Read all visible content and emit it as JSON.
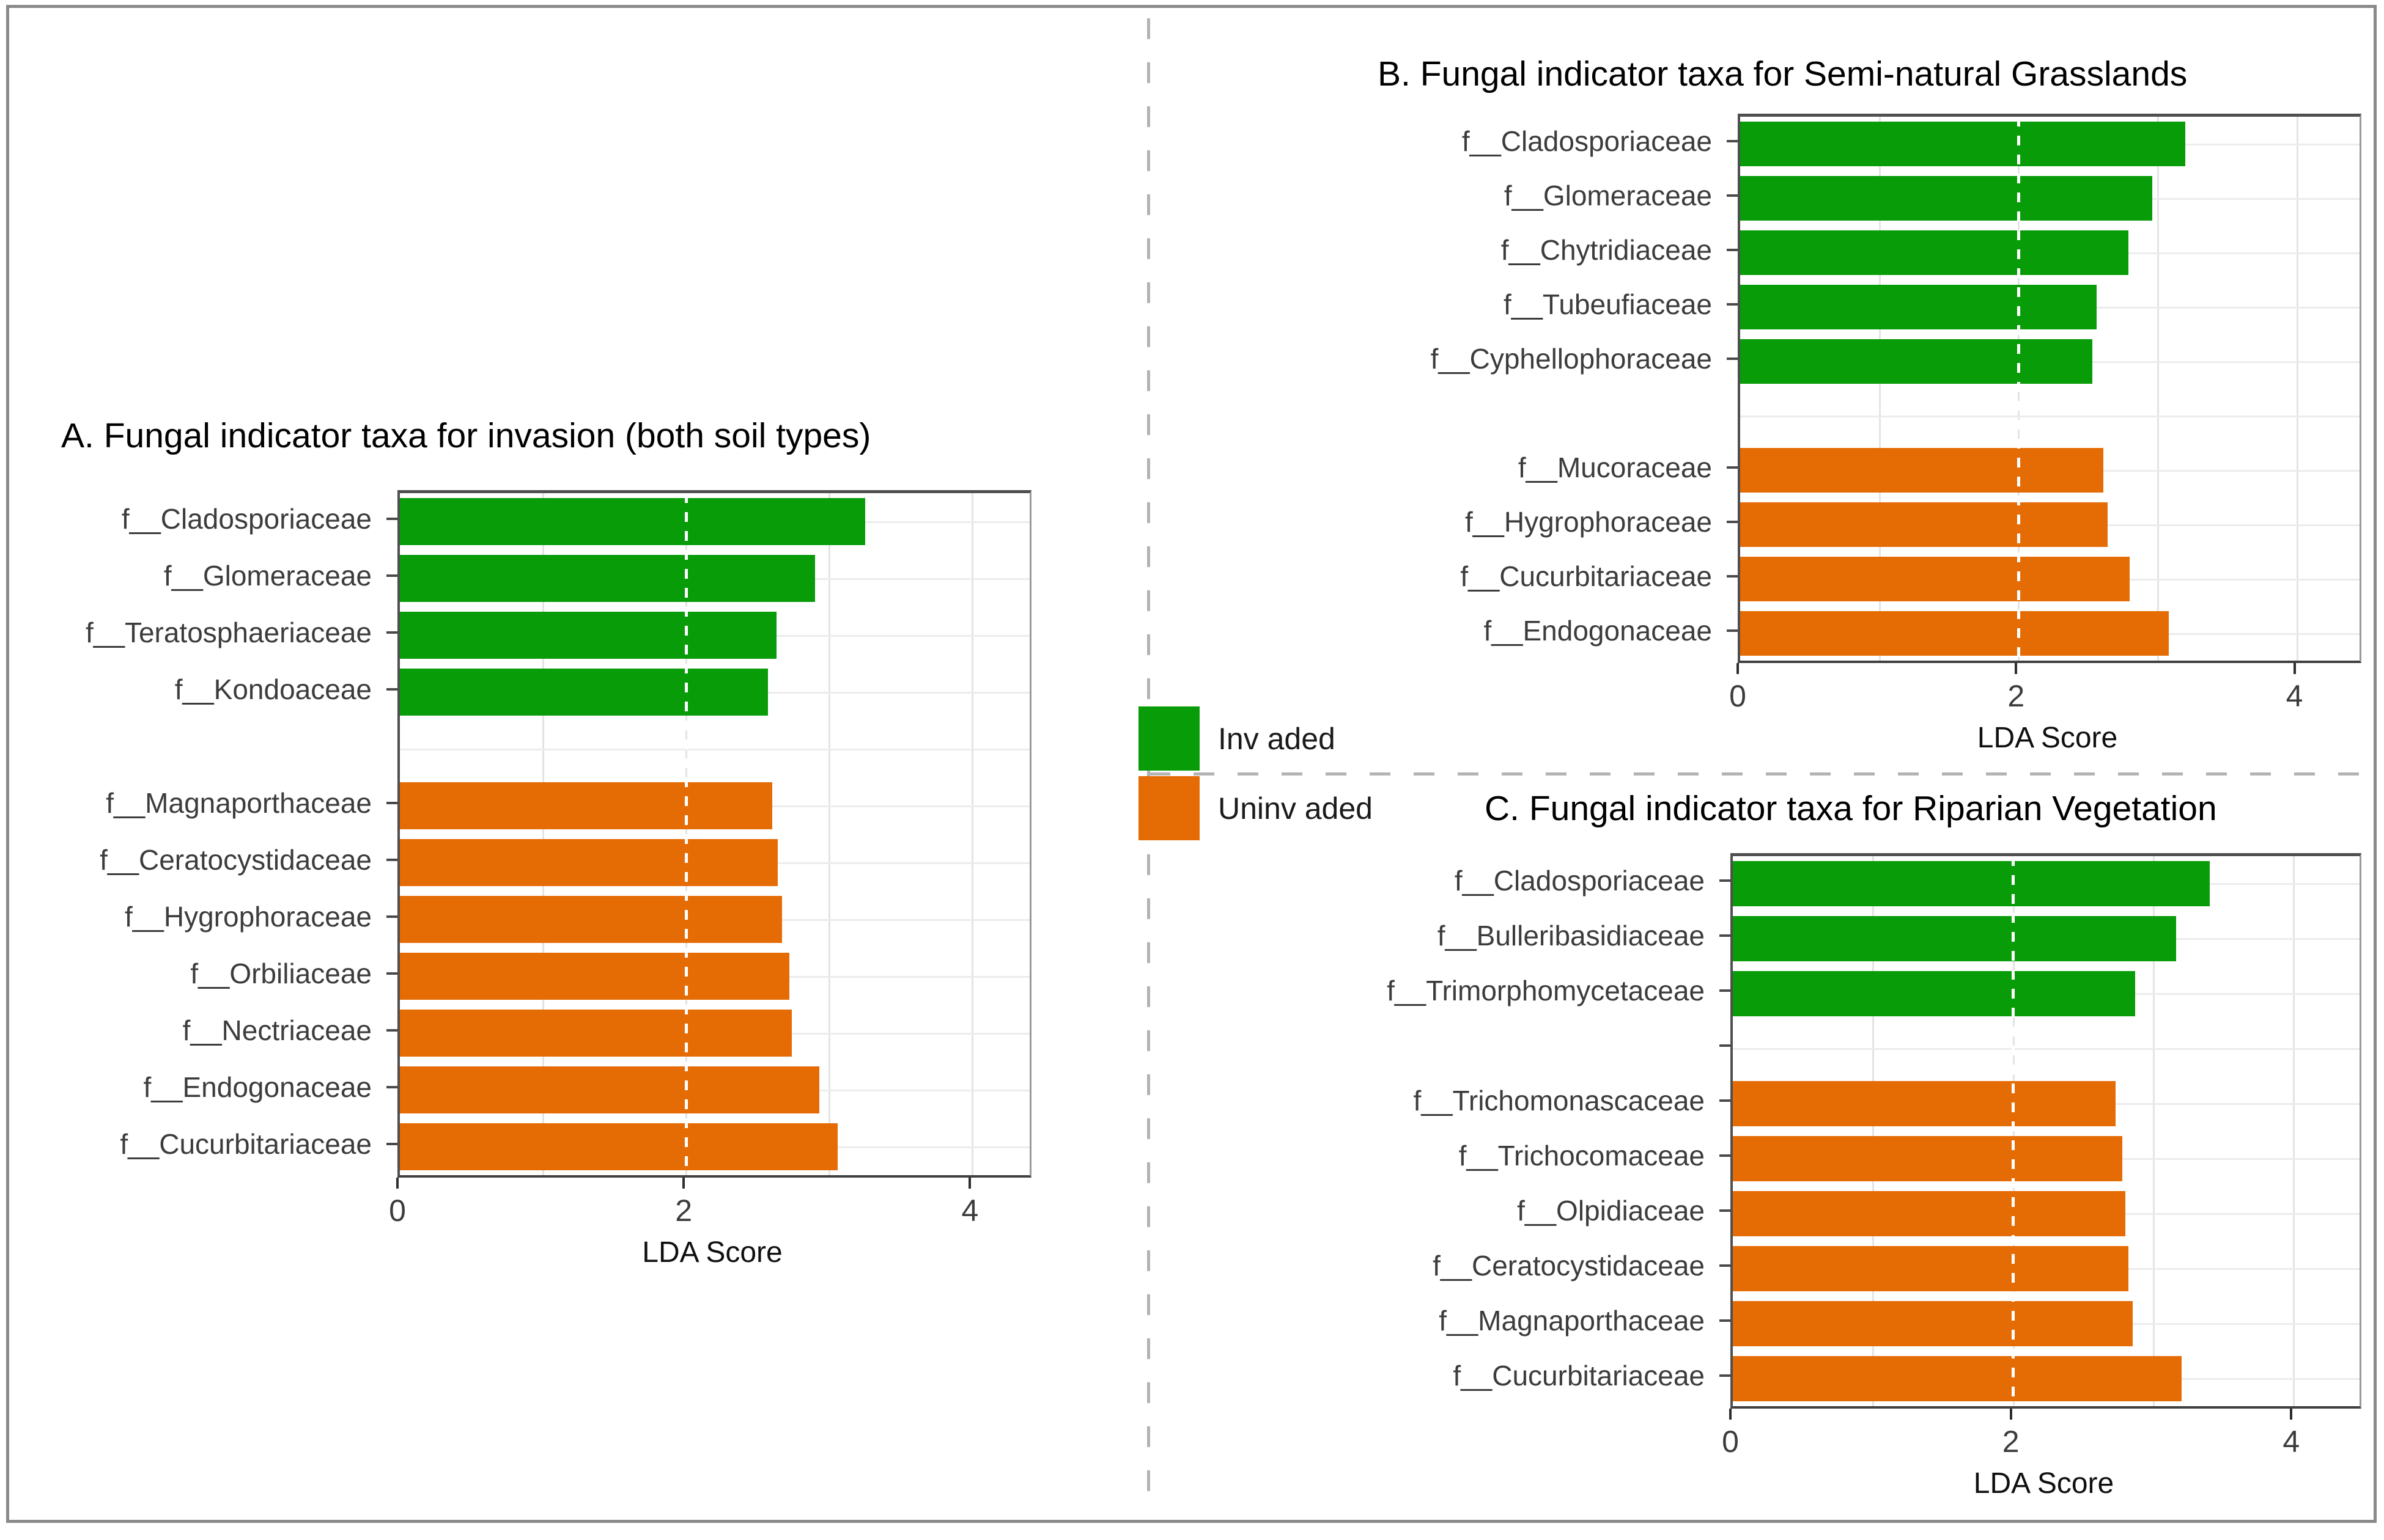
{
  "legend": {
    "items": [
      {
        "key": "invaded",
        "label": "Inv aded",
        "swatch_color": "#089c08"
      },
      {
        "key": "uninvaded",
        "label": "Uninv aded",
        "swatch_color": "#e56c05"
      }
    ]
  },
  "colors": {
    "invaded_green": "#089c08",
    "uninvaded_orange": "#e56c05",
    "divider_gray": "#b3b3b3",
    "reference_line": "#ffffff"
  },
  "chart_data": [
    {
      "type": "bar",
      "orientation": "horizontal",
      "title": "A. Fungal indicator taxa for invasion (both soil types)",
      "xlabel": "LDA Score",
      "xticks": [
        0,
        2,
        4
      ],
      "xlim": [
        0,
        4.4
      ],
      "reference_line_x": 2,
      "grid": true,
      "series": [
        {
          "name": "Invaded",
          "color": "#089c08",
          "categories": [
            "f__Cladosporiaceae",
            "f__Glomeraceae",
            "f__Teratosphaeriaceae",
            "f__Kondoaceae"
          ],
          "values": [
            3.25,
            2.9,
            2.63,
            2.57
          ]
        },
        {
          "name": "Uninvaded",
          "color": "#e56c05",
          "categories": [
            "f__Magnaporthaceae",
            "f__Ceratocystidaceae",
            "f__Hygrophoraceae",
            "f__Orbiliaceae",
            "f__Nectriaceae",
            "f__Endogonaceae",
            "f__Cucurbitariaceae"
          ],
          "values": [
            2.6,
            2.64,
            2.67,
            2.72,
            2.74,
            2.93,
            3.06
          ]
        }
      ]
    },
    {
      "type": "bar",
      "orientation": "horizontal",
      "title": "B. Fungal indicator taxa for Semi-natural Grasslands",
      "xlabel": "LDA Score",
      "xticks": [
        0,
        2,
        4
      ],
      "xlim": [
        0,
        4.45
      ],
      "reference_line_x": 2,
      "grid": true,
      "series": [
        {
          "name": "Invaded",
          "color": "#089c08",
          "categories": [
            "f__Cladosporiaceae",
            "f__Glomeraceae",
            "f__Chytridiaceae",
            "f__Tubeufiaceae",
            "f__Cyphellophoraceae"
          ],
          "values": [
            3.2,
            2.96,
            2.79,
            2.56,
            2.53
          ]
        },
        {
          "name": "Uninvaded",
          "color": "#e56c05",
          "categories": [
            "f__Mucoraceae",
            "f__Hygrophoraceae",
            "f__Cucurbitariaceae",
            "f__Endogonaceae"
          ],
          "values": [
            2.61,
            2.64,
            2.8,
            3.08
          ]
        }
      ]
    },
    {
      "type": "bar",
      "orientation": "horizontal",
      "title": "C. Fungal indicator taxa for Riparian Vegetation",
      "xlabel": "LDA Score",
      "xticks": [
        0,
        2,
        4
      ],
      "xlim": [
        0,
        4.47
      ],
      "reference_line_x": 2,
      "grid": true,
      "series": [
        {
          "name": "Invaded",
          "color": "#089c08",
          "categories": [
            "f__Cladosporiaceae",
            "f__Bulleribasidiaceae",
            "f__Trimorphomycetaceae"
          ],
          "values": [
            3.4,
            3.16,
            2.87
          ]
        },
        {
          "name": "Uninvaded",
          "color": "#e56c05",
          "categories": [
            "f__Trichomonascaceae",
            "f__Trichocomaceae",
            "f__Olpidiaceae",
            "f__Ceratocystidaceae",
            "f__Magnaporthaceae",
            "f__Cucurbitariaceae"
          ],
          "values": [
            2.73,
            2.78,
            2.8,
            2.82,
            2.85,
            3.2
          ]
        }
      ]
    }
  ]
}
